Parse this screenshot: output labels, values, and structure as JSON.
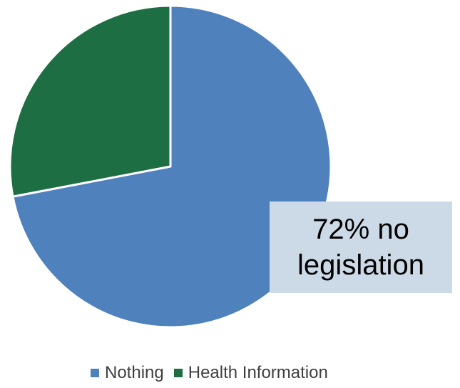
{
  "chart_data": {
    "type": "pie",
    "categories": [
      "Nothing",
      "Health Information"
    ],
    "values": [
      72,
      28
    ],
    "colors": [
      "#4f81bd",
      "#1e6e44"
    ],
    "start_angle_deg": 0,
    "legend_position": "bottom",
    "annotation": "72% no legislation"
  },
  "legend": {
    "items": [
      {
        "label": "Nothing",
        "color": "#4f81bd"
      },
      {
        "label": "Health Information",
        "color": "#1e6e44"
      }
    ]
  }
}
